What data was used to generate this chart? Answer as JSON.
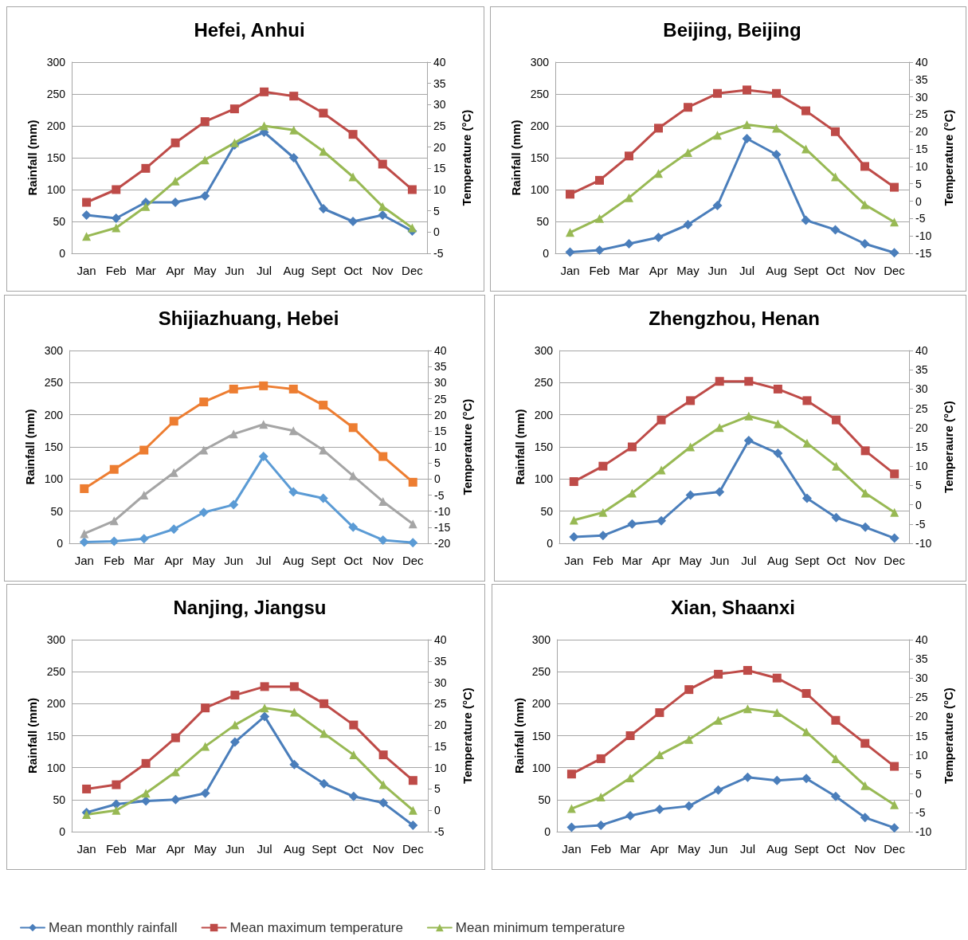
{
  "chart_data": [
    {
      "type": "line",
      "title": "Hefei, Anhui",
      "ylabel": "Rainfall (mm)",
      "y2label": "Temperature (°C)",
      "categories": [
        "Jan",
        "Feb",
        "Mar",
        "Apr",
        "May",
        "Jun",
        "Jul",
        "Aug",
        "Sept",
        "Oct",
        "Nov",
        "Dec"
      ],
      "ylim": [
        0,
        300
      ],
      "yticks": [
        0,
        50,
        100,
        150,
        200,
        250,
        300
      ],
      "y2lim": [
        -5,
        40
      ],
      "y2ticks": [
        -5,
        0,
        5,
        10,
        15,
        20,
        25,
        30,
        35,
        40
      ],
      "grid": "y",
      "legend": false,
      "series": [
        {
          "color": "#4a7ebb",
          "marker": "diamond",
          "values": [
            60,
            55,
            80,
            80,
            90,
            170,
            190,
            150,
            70,
            50,
            60,
            35
          ]
        },
        {
          "color": "#be4b48",
          "marker": "square",
          "axis": "y2",
          "values": [
            7,
            10,
            15,
            21,
            26,
            29,
            33,
            32,
            28,
            23,
            16,
            10
          ]
        },
        {
          "color": "#98b954",
          "marker": "triangle",
          "axis": "y2",
          "values": [
            -1,
            1,
            6,
            12,
            17,
            21,
            25,
            24,
            19,
            13,
            6,
            1
          ]
        }
      ]
    },
    {
      "type": "line",
      "title": "Beijing, Beijing",
      "ylabel": "Rainfall (mm)",
      "y2label": "Temperature (°C)",
      "categories": [
        "Jan",
        "Feb",
        "Mar",
        "Apr",
        "May",
        "Jun",
        "Jul",
        "Aug",
        "Sept",
        "Oct",
        "Nov",
        "Dec"
      ],
      "ylim": [
        0,
        300
      ],
      "yticks": [
        0,
        50,
        100,
        150,
        200,
        250,
        300
      ],
      "y2lim": [
        -15,
        40
      ],
      "y2ticks": [
        -15,
        -10,
        -5,
        0,
        5,
        10,
        15,
        20,
        25,
        30,
        35,
        40
      ],
      "grid": "y",
      "legend": false,
      "series": [
        {
          "color": "#4a7ebb",
          "marker": "diamond",
          "values": [
            2,
            5,
            15,
            25,
            45,
            75,
            180,
            155,
            52,
            37,
            15,
            1
          ]
        },
        {
          "color": "#be4b48",
          "marker": "square",
          "axis": "y2",
          "values": [
            2,
            6,
            13,
            21,
            27,
            31,
            32,
            31,
            26,
            20,
            10,
            4
          ]
        },
        {
          "color": "#98b954",
          "marker": "triangle",
          "axis": "y2",
          "values": [
            -9,
            -5,
            1,
            8,
            14,
            19,
            22,
            21,
            15,
            7,
            -1,
            -6
          ]
        }
      ]
    },
    {
      "type": "line",
      "title": "Shijiazhuang, Hebei",
      "ylabel": "Rainfall (mm)",
      "y2label": "Temperature (°C)",
      "categories": [
        "Jan",
        "Feb",
        "Mar",
        "Apr",
        "May",
        "Jun",
        "Jul",
        "Aug",
        "Sept",
        "Oct",
        "Nov",
        "Dec"
      ],
      "ylim": [
        0,
        300
      ],
      "yticks": [
        0,
        50,
        100,
        150,
        200,
        250,
        300
      ],
      "y2lim": [
        -20,
        40
      ],
      "y2ticks": [
        -20,
        -15,
        -10,
        -5,
        0,
        5,
        10,
        15,
        20,
        25,
        30,
        35,
        40
      ],
      "grid": "y",
      "legend": false,
      "series": [
        {
          "color": "#5b9bd5",
          "marker": "diamond",
          "values": [
            2,
            3,
            7,
            22,
            48,
            60,
            135,
            80,
            70,
            25,
            5,
            1
          ]
        },
        {
          "color": "#ed7d31",
          "marker": "square",
          "axis": "y2",
          "values": [
            -3,
            3,
            9,
            18,
            24,
            28,
            29,
            28,
            23,
            16,
            7,
            -1
          ]
        },
        {
          "color": "#a5a5a5",
          "marker": "triangle",
          "axis": "y2",
          "values": [
            -17,
            -13,
            -5,
            2,
            9,
            14,
            17,
            15,
            9,
            1,
            -7,
            -14
          ]
        }
      ]
    },
    {
      "type": "line",
      "title": "Zhengzhou, Henan",
      "ylabel": "Rainfall (mm)",
      "y2label": "Temperaure (°C)",
      "categories": [
        "Jan",
        "Feb",
        "Mar",
        "Apr",
        "May",
        "Jun",
        "Jul",
        "Aug",
        "Sept",
        "Oct",
        "Nov",
        "Dec"
      ],
      "ylim": [
        0,
        300
      ],
      "yticks": [
        0,
        50,
        100,
        150,
        200,
        250,
        300
      ],
      "y2lim": [
        -10,
        40
      ],
      "y2ticks": [
        -10,
        -5,
        0,
        5,
        10,
        15,
        20,
        25,
        30,
        35,
        40
      ],
      "grid": "y",
      "legend": false,
      "series": [
        {
          "color": "#4a7ebb",
          "marker": "diamond",
          "values": [
            10,
            12,
            30,
            35,
            75,
            80,
            160,
            140,
            70,
            40,
            25,
            8
          ]
        },
        {
          "color": "#be4b48",
          "marker": "square",
          "axis": "y2",
          "values": [
            6,
            10,
            15,
            22,
            27,
            32,
            32,
            30,
            27,
            22,
            14,
            8
          ]
        },
        {
          "color": "#98b954",
          "marker": "triangle",
          "axis": "y2",
          "values": [
            -4,
            -2,
            3,
            9,
            15,
            20,
            23,
            21,
            16,
            10,
            3,
            -2
          ]
        }
      ]
    },
    {
      "type": "line",
      "title": "Nanjing, Jiangsu",
      "ylabel": "Rainfall (mm)",
      "y2label": "Temperature (°C)",
      "categories": [
        "Jan",
        "Feb",
        "Mar",
        "Apr",
        "May",
        "Jun",
        "Jul",
        "Aug",
        "Sept",
        "Oct",
        "Nov",
        "Dec"
      ],
      "ylim": [
        0,
        300
      ],
      "yticks": [
        0,
        50,
        100,
        150,
        200,
        250,
        300
      ],
      "y2lim": [
        -5,
        40
      ],
      "y2ticks": [
        -5,
        0,
        5,
        10,
        15,
        20,
        25,
        30,
        35,
        40
      ],
      "grid": "y",
      "legend": false,
      "series": [
        {
          "color": "#4a7ebb",
          "marker": "diamond",
          "values": [
            30,
            43,
            48,
            50,
            60,
            140,
            180,
            105,
            75,
            55,
            45,
            10
          ]
        },
        {
          "color": "#be4b48",
          "marker": "square",
          "axis": "y2",
          "values": [
            5,
            6,
            11,
            17,
            24,
            27,
            29,
            29,
            25,
            20,
            13,
            7
          ]
        },
        {
          "color": "#98b954",
          "marker": "triangle",
          "axis": "y2",
          "values": [
            -1,
            0,
            4,
            9,
            15,
            20,
            24,
            23,
            18,
            13,
            6,
            0
          ]
        }
      ]
    },
    {
      "type": "line",
      "title": "Xian, Shaanxi",
      "ylabel": "Rainfall (mm)",
      "y2label": "Temperature (°C)",
      "categories": [
        "Jan",
        "Feb",
        "Mar",
        "Apr",
        "May",
        "Jun",
        "Jul",
        "Aug",
        "Sept",
        "Oct",
        "Nov",
        "Dec"
      ],
      "ylim": [
        0,
        300
      ],
      "yticks": [
        0,
        50,
        100,
        150,
        200,
        250,
        300
      ],
      "y2lim": [
        -10,
        40
      ],
      "y2ticks": [
        -10,
        -5,
        0,
        5,
        10,
        15,
        20,
        25,
        30,
        35,
        40
      ],
      "grid": "y",
      "legend": "bottom",
      "series": [
        {
          "name": "Mean monthly rainfall",
          "color": "#4a7ebb",
          "marker": "diamond",
          "values": [
            7,
            10,
            25,
            35,
            40,
            65,
            85,
            80,
            83,
            55,
            22,
            6
          ]
        },
        {
          "name": "Mean maximum temperature",
          "color": "#be4b48",
          "marker": "square",
          "axis": "y2",
          "values": [
            5,
            9,
            15,
            21,
            27,
            31,
            32,
            30,
            26,
            19,
            13,
            7
          ]
        },
        {
          "name": "Mean minimum temperature",
          "color": "#98b954",
          "marker": "triangle",
          "axis": "y2",
          "values": [
            -4,
            -1,
            4,
            10,
            14,
            19,
            22,
            21,
            16,
            9,
            2,
            -3
          ]
        }
      ]
    }
  ]
}
